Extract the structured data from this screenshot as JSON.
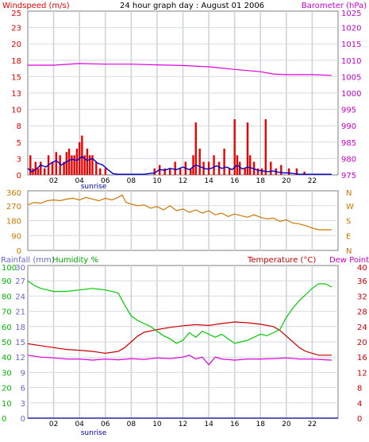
{
  "chart_data": [
    {
      "type": "line",
      "title": "24 hour graph day : August 01 2006",
      "left_axis_label": "Windspeed (m/s)",
      "right_axis_label": "Barometer (hPa)",
      "left_ylim": [
        0,
        25
      ],
      "right_ylim": [
        975,
        1025
      ],
      "left_ticks": [
        "0",
        "3",
        "5",
        "8",
        "10",
        "13",
        "15",
        "18",
        "20",
        "23",
        "25"
      ],
      "right_ticks": [
        "975",
        "980",
        "985",
        "990",
        "995",
        "1000",
        "1005",
        "1010",
        "1015",
        "1020",
        "1025"
      ],
      "x_ticks": [
        "02",
        "04",
        "06",
        "08",
        "10",
        "12",
        "14",
        "16",
        "18",
        "20",
        "22"
      ],
      "x_note": "sunrise",
      "xlim": [
        0,
        24
      ],
      "grid": true,
      "series": [
        {
          "name": "Barometer",
          "axis": "right",
          "color": "#dd00dd",
          "x": [
            0,
            2,
            4,
            6,
            8,
            10,
            12,
            14,
            16,
            18,
            19,
            20,
            22,
            23.5
          ],
          "values": [
            1008.5,
            1008.5,
            1009,
            1008.8,
            1008.8,
            1008.6,
            1008.4,
            1008,
            1007.2,
            1006.5,
            1005.8,
            1005.6,
            1005.6,
            1005.4
          ]
        },
        {
          "name": "Wind gust",
          "axis": "left",
          "color": "#ee0000",
          "style": "bars",
          "x": [
            0.2,
            0.4,
            0.6,
            0.8,
            1.0,
            1.3,
            1.6,
            1.9,
            2.2,
            2.5,
            2.8,
            3.0,
            3.2,
            3.4,
            3.6,
            3.8,
            4.0,
            4.2,
            4.4,
            4.6,
            4.8,
            5.0,
            5.3,
            5.6,
            6.0,
            9.8,
            10.2,
            10.6,
            11.0,
            11.4,
            11.8,
            12.2,
            12.6,
            12.8,
            13.0,
            13.3,
            13.6,
            14.0,
            14.4,
            14.8,
            15.2,
            15.6,
            16.0,
            16.2,
            16.4,
            16.8,
            17.0,
            17.2,
            17.5,
            17.8,
            18.1,
            18.4,
            18.8,
            19.2,
            19.6,
            20.2,
            20.8,
            21.4
          ],
          "values": [
            3,
            1,
            2,
            1,
            2,
            1,
            3,
            2,
            3.5,
            3,
            2,
            3.5,
            4,
            3,
            3,
            4,
            5,
            6,
            3,
            4,
            3,
            3,
            2,
            1,
            1,
            1,
            1.5,
            1,
            1,
            2,
            1,
            2,
            1,
            3,
            8,
            4,
            2,
            2,
            3,
            2,
            4,
            1,
            8.5,
            3,
            2,
            1,
            8,
            3,
            2,
            1,
            1,
            8.5,
            2,
            1,
            1.5,
            1,
            1,
            0.5
          ]
        },
        {
          "name": "Windspeed",
          "axis": "left",
          "color": "#0000cc",
          "x": [
            0,
            0.3,
            0.6,
            1.0,
            1.4,
            1.8,
            2.2,
            2.6,
            3.0,
            3.4,
            3.8,
            4.2,
            4.6,
            5.0,
            5.4,
            5.8,
            6.2,
            6.6,
            7.0,
            8.0,
            9.0,
            9.8,
            10.2,
            10.6,
            11.0,
            11.5,
            12.0,
            12.5,
            13.0,
            13.4,
            13.8,
            14.2,
            14.6,
            15.0,
            15.4,
            15.8,
            16.2,
            16.6,
            17.0,
            17.4,
            17.8,
            18.2,
            18.6,
            19.0,
            19.4,
            19.8,
            20.2,
            20.6,
            21.0,
            22.0,
            23.0,
            23.5
          ],
          "values": [
            1,
            0.5,
            0.8,
            1.5,
            1.2,
            1.8,
            2.2,
            1.5,
            2,
            2.4,
            2.2,
            2.8,
            2.2,
            2.5,
            1.8,
            1.5,
            0.8,
            0.2,
            0.1,
            0.1,
            0.1,
            0.3,
            0.8,
            0.7,
            1,
            0.8,
            1.2,
            0.8,
            1.5,
            1.2,
            0.9,
            1,
            1.4,
            1,
            1.2,
            0.8,
            1.5,
            0.9,
            1.2,
            1,
            0.7,
            0.6,
            0.5,
            0.6,
            0.4,
            0.3,
            0.3,
            0.2,
            0.1,
            0.1,
            0.1,
            0.1
          ]
        }
      ]
    },
    {
      "type": "line",
      "left_ylim": [
        0,
        360
      ],
      "left_ticks": [
        "0",
        "90",
        "180",
        "270",
        "360"
      ],
      "right_ticks": [
        "N",
        "E",
        "S",
        "W",
        "N"
      ],
      "xlim": [
        0,
        24
      ],
      "grid": true,
      "series": [
        {
          "name": "Wind direction",
          "color": "#cc7700",
          "x": [
            0,
            0.5,
            1,
            1.5,
            2,
            2.5,
            3,
            3.5,
            4,
            4.5,
            5,
            5.5,
            6,
            6.5,
            7,
            7.3,
            7.6,
            8,
            8.5,
            9,
            9.5,
            10,
            10.5,
            11,
            11.5,
            12,
            12.5,
            13,
            13.5,
            14,
            14.5,
            15,
            15.5,
            16,
            16.5,
            17,
            17.5,
            18,
            18.5,
            19,
            19.5,
            20,
            20.5,
            21,
            21.5,
            22,
            22.5,
            23,
            23.5
          ],
          "values": [
            275,
            290,
            285,
            300,
            305,
            300,
            310,
            315,
            305,
            320,
            310,
            300,
            315,
            305,
            320,
            335,
            290,
            280,
            270,
            275,
            255,
            265,
            245,
            270,
            240,
            250,
            230,
            245,
            225,
            240,
            215,
            225,
            205,
            220,
            210,
            200,
            215,
            200,
            190,
            195,
            175,
            185,
            165,
            160,
            150,
            135,
            125,
            125,
            125
          ]
        }
      ]
    },
    {
      "type": "line",
      "left_axis_label_1": "Rainfall (mm)",
      "left_axis_label_2": "Humidity %",
      "right_axis_label_1": "Temperature (°C)",
      "right_axis_label_2": "Dew Point",
      "humidity_ylim": [
        0,
        100
      ],
      "humidity_ticks": [
        "0",
        "10",
        "20",
        "30",
        "40",
        "50",
        "60",
        "70",
        "80",
        "90",
        "100"
      ],
      "rainfall_ylim": [
        0,
        30
      ],
      "rainfall_ticks": [
        "0",
        "3",
        "6",
        "9",
        "12",
        "15",
        "18",
        "21",
        "24",
        "27",
        "30"
      ],
      "temperature_ylim": [
        0,
        40
      ],
      "temperature_ticks": [
        "0",
        "4",
        "8",
        "12",
        "16",
        "20",
        "24",
        "28",
        "32",
        "36",
        "40"
      ],
      "x_ticks": [
        "02",
        "04",
        "06",
        "08",
        "10",
        "12",
        "14",
        "16",
        "18",
        "20",
        "22"
      ],
      "x_note": "sunrise",
      "xlim": [
        0,
        24
      ],
      "grid": true,
      "series": [
        {
          "name": "Humidity",
          "axis": "humidity",
          "color": "#00cc00",
          "x": [
            0,
            0.5,
            1,
            1.5,
            2,
            3,
            4,
            5,
            6,
            6.5,
            7,
            7.5,
            8,
            8.5,
            9,
            9.5,
            10,
            10.5,
            11,
            11.5,
            12,
            12.5,
            13,
            13.5,
            14,
            14.5,
            15,
            15.5,
            16,
            16.5,
            17,
            17.5,
            18,
            18.5,
            19,
            19.5,
            20,
            20.5,
            21,
            21.5,
            22,
            22.5,
            23,
            23.5
          ],
          "values": [
            90,
            87,
            85,
            84,
            83,
            83,
            84,
            85,
            84,
            83,
            82,
            74,
            67,
            64,
            62,
            60,
            57,
            54,
            52,
            49,
            51,
            56,
            53,
            57,
            55,
            53,
            55,
            52,
            49,
            50,
            51,
            53,
            55,
            54,
            56,
            58,
            66,
            72,
            77,
            81,
            85,
            88,
            88,
            86
          ]
        },
        {
          "name": "Temperature",
          "axis": "temperature",
          "color": "#cc0000",
          "x": [
            0,
            1,
            2,
            3,
            4,
            5,
            6,
            7,
            7.5,
            8,
            8.5,
            9,
            10,
            11,
            12,
            13,
            14,
            15,
            16,
            17,
            18,
            19,
            19.5,
            20,
            20.5,
            21,
            21.5,
            22,
            22.5,
            23,
            23.5
          ],
          "values": [
            19.5,
            19,
            18.5,
            18,
            17.8,
            17.5,
            17,
            17.5,
            18.5,
            20,
            21.5,
            22.5,
            23.2,
            23.8,
            24.2,
            24.5,
            24.3,
            24.8,
            25.2,
            25,
            24.6,
            24,
            23,
            21.5,
            20,
            18.5,
            17.5,
            17,
            16.5,
            16.5,
            16.5
          ]
        },
        {
          "name": "Dew Point",
          "axis": "temperature",
          "color": "#dd00dd",
          "x": [
            0,
            1,
            2,
            3,
            4,
            5,
            6,
            7,
            8,
            9,
            10,
            11,
            12,
            12.5,
            13,
            13.5,
            14,
            14.5,
            15,
            16,
            17,
            18,
            19,
            20,
            21,
            22,
            23,
            23.5
          ],
          "values": [
            16.5,
            16,
            15.8,
            15.5,
            15.5,
            15.2,
            15.5,
            15.3,
            15.6,
            15.4,
            15.8,
            15.6,
            16,
            16.5,
            15.5,
            16,
            14,
            16,
            15.5,
            15.2,
            15.5,
            15.5,
            15.6,
            15.8,
            15.5,
            15.5,
            15.3,
            15.2
          ]
        },
        {
          "name": "Rainfall",
          "axis": "rainfall",
          "color": "#2222aa",
          "x": [
            0,
            24
          ],
          "values": [
            0,
            0
          ]
        }
      ]
    }
  ]
}
